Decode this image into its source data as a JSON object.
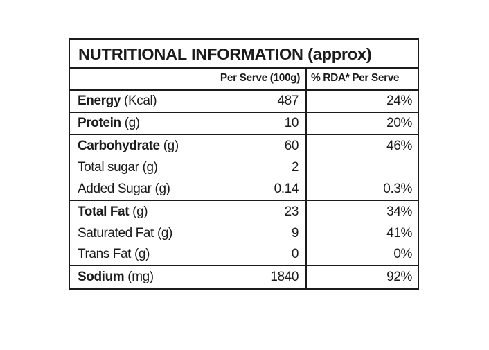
{
  "label": {
    "title": "NUTRITIONAL INFORMATION (approx)",
    "header": {
      "per_serve": "Per Serve (100g)",
      "rda": "% RDA* Per Serve"
    },
    "rows": [
      {
        "name": "Energy",
        "unit": "(Kcal)",
        "bold": true,
        "per_serve": "487",
        "rda": "24%"
      },
      {
        "name": "Protein",
        "unit": "(g)",
        "bold": true,
        "per_serve": "10",
        "rda": "20%"
      },
      {
        "name": "Carbohydrate",
        "unit": "(g)",
        "bold": true,
        "per_serve": "60",
        "rda": "46%"
      },
      {
        "name": "Total sugar",
        "unit": "(g)",
        "bold": false,
        "per_serve": "2",
        "rda": ""
      },
      {
        "name": "Added Sugar",
        "unit": "(g)",
        "bold": false,
        "per_serve": "0.14",
        "rda": "0.3%"
      },
      {
        "name": "Total Fat",
        "unit": "(g)",
        "bold": true,
        "per_serve": "23",
        "rda": "34%"
      },
      {
        "name": "Saturated Fat",
        "unit": "(g)",
        "bold": false,
        "per_serve": "9",
        "rda": "41%"
      },
      {
        "name": "Trans Fat",
        "unit": "(g)",
        "bold": false,
        "per_serve": "0",
        "rda": "0%"
      },
      {
        "name": "Sodium",
        "unit": "(mg)",
        "bold": true,
        "per_serve": "1840",
        "rda": "92%"
      }
    ]
  }
}
